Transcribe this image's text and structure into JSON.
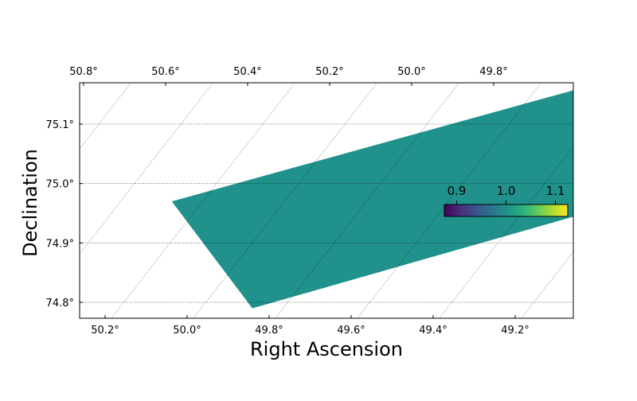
{
  "chart_data": {
    "type": "heatmap",
    "title": "",
    "xlabel": "Right Ascension",
    "ylabel": "Declination",
    "projection": "sky coordinates with tilted RA grid",
    "bottom_x_ticks": [
      "50.2°",
      "50.0°",
      "49.8°",
      "49.6°",
      "49.4°",
      "49.2°"
    ],
    "top_x_ticks": [
      "50.8°",
      "50.6°",
      "50.4°",
      "50.2°",
      "50.0°",
      "49.8°"
    ],
    "y_ticks": [
      "75.1°",
      "75.0°",
      "74.9°",
      "74.8°"
    ],
    "ra_range_bottom": [
      50.34,
      49.04
    ],
    "dec_range": [
      74.77,
      75.17
    ],
    "grid": true,
    "footprint": {
      "value": 1.0,
      "color": "#21918c",
      "corners": [
        {
          "ra": 49.48,
          "dec": 75.16
        },
        {
          "ra": 49.11,
          "dec": 74.98
        },
        {
          "ra": 49.86,
          "dec": 74.79
        },
        {
          "ra": 50.26,
          "dec": 74.97
        }
      ]
    },
    "colorbar": {
      "cmap": "viridis",
      "vmin": 0.875,
      "vmax": 1.125,
      "ticks": [
        "0.9",
        "1.0",
        "1.1"
      ],
      "tick_values": [
        0.9,
        1.0,
        1.1
      ],
      "placement": "inset-right"
    }
  }
}
